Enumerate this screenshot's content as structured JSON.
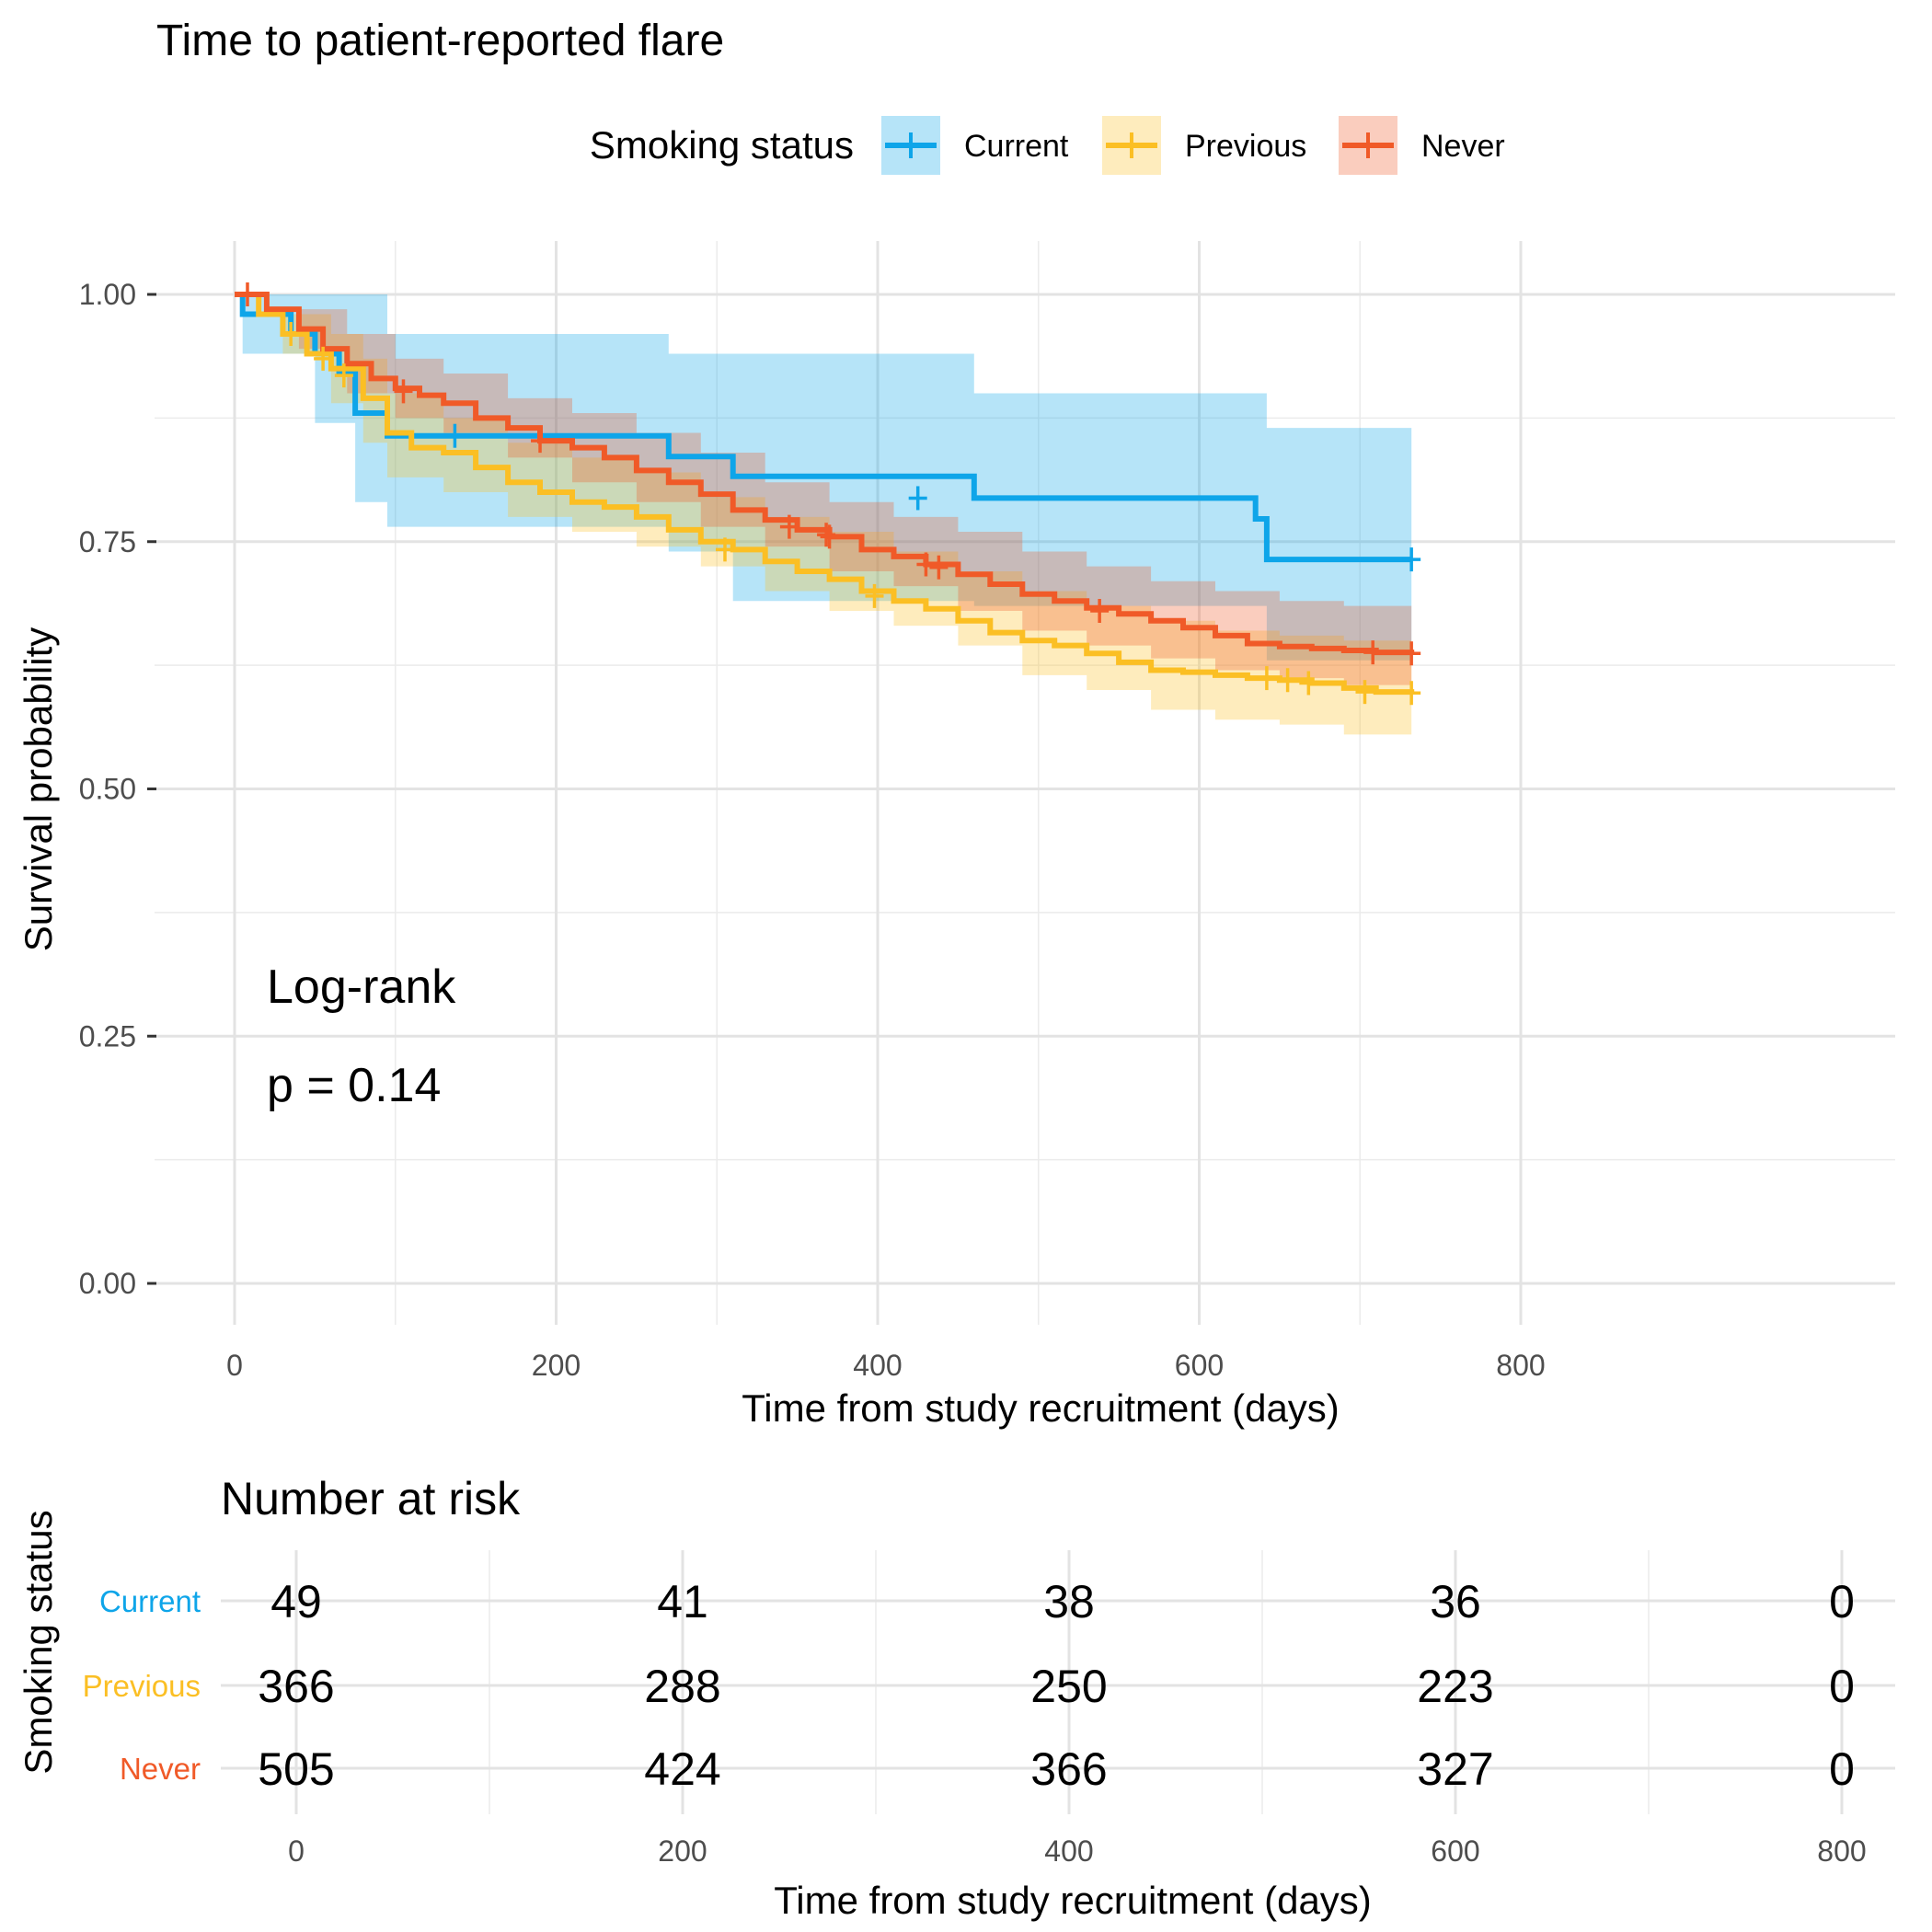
{
  "chart_data": {
    "type": "line",
    "subtype": "kaplan-meier survival curve with confidence bands and number-at-risk table",
    "title": "Time to patient-reported flare",
    "legend_title": "Smoking status",
    "legend_position": "top",
    "xlabel": "Time from study recruitment (days)",
    "ylabel": "Survival probability",
    "xlim": [
      0,
      800
    ],
    "ylim": [
      0,
      1
    ],
    "x_ticks": [
      "0",
      "200",
      "400",
      "600",
      "800"
    ],
    "y_ticks": [
      "0.00",
      "0.25",
      "0.50",
      "0.75",
      "1.00"
    ],
    "grid": true,
    "annotation": {
      "line1": "Log-rank",
      "line2": "p = 0.14"
    },
    "colors": {
      "Current": "#0ea5e9",
      "Previous": "#fbbf24",
      "Never": "#f05a28"
    },
    "series": [
      {
        "name": "Current",
        "color": "#0ea5e9",
        "steps": [
          [
            0,
            1.0
          ],
          [
            5,
            0.98
          ],
          [
            20,
            0.98
          ],
          [
            35,
            0.96
          ],
          [
            50,
            0.94
          ],
          [
            65,
            0.92
          ],
          [
            75,
            0.88
          ],
          [
            95,
            0.857
          ],
          [
            262,
            0.857
          ],
          [
            270,
            0.836
          ],
          [
            310,
            0.816
          ],
          [
            460,
            0.794
          ],
          [
            635,
            0.773
          ],
          [
            642,
            0.732
          ],
          [
            732,
            0.732
          ]
        ],
        "ci_upper": [
          [
            0,
            1.0
          ],
          [
            75,
            1.0
          ],
          [
            95,
            0.96
          ],
          [
            262,
            0.96
          ],
          [
            270,
            0.94
          ],
          [
            310,
            0.94
          ],
          [
            460,
            0.9
          ],
          [
            635,
            0.9
          ],
          [
            642,
            0.865
          ],
          [
            732,
            0.865
          ]
        ],
        "ci_lower": [
          [
            0,
            1.0
          ],
          [
            5,
            0.94
          ],
          [
            50,
            0.87
          ],
          [
            75,
            0.79
          ],
          [
            95,
            0.765
          ],
          [
            262,
            0.765
          ],
          [
            270,
            0.74
          ],
          [
            310,
            0.69
          ],
          [
            460,
            0.685
          ],
          [
            635,
            0.685
          ],
          [
            642,
            0.63
          ],
          [
            732,
            0.63
          ]
        ],
        "censored": [
          [
            137,
            0.857
          ],
          [
            425,
            0.794
          ],
          [
            732,
            0.732
          ]
        ]
      },
      {
        "name": "Previous",
        "color": "#fbbf24",
        "steps": [
          [
            0,
            1.0
          ],
          [
            15,
            0.98
          ],
          [
            30,
            0.96
          ],
          [
            45,
            0.94
          ],
          [
            60,
            0.925
          ],
          [
            80,
            0.895
          ],
          [
            95,
            0.86
          ],
          [
            110,
            0.845
          ],
          [
            130,
            0.84
          ],
          [
            150,
            0.825
          ],
          [
            170,
            0.81
          ],
          [
            190,
            0.8
          ],
          [
            210,
            0.79
          ],
          [
            230,
            0.785
          ],
          [
            250,
            0.775
          ],
          [
            270,
            0.762
          ],
          [
            290,
            0.75
          ],
          [
            310,
            0.742
          ],
          [
            330,
            0.73
          ],
          [
            350,
            0.72
          ],
          [
            370,
            0.712
          ],
          [
            390,
            0.7
          ],
          [
            410,
            0.69
          ],
          [
            430,
            0.682
          ],
          [
            450,
            0.67
          ],
          [
            470,
            0.658
          ],
          [
            490,
            0.65
          ],
          [
            510,
            0.645
          ],
          [
            530,
            0.637
          ],
          [
            550,
            0.628
          ],
          [
            570,
            0.62
          ],
          [
            590,
            0.618
          ],
          [
            610,
            0.615
          ],
          [
            630,
            0.612
          ],
          [
            650,
            0.61
          ],
          [
            670,
            0.607
          ],
          [
            690,
            0.602
          ],
          [
            710,
            0.598
          ],
          [
            732,
            0.597
          ]
        ],
        "ci_upper": [
          [
            0,
            1.0
          ],
          [
            30,
            0.98
          ],
          [
            60,
            0.96
          ],
          [
            80,
            0.935
          ],
          [
            95,
            0.9
          ],
          [
            130,
            0.875
          ],
          [
            170,
            0.85
          ],
          [
            210,
            0.835
          ],
          [
            250,
            0.82
          ],
          [
            290,
            0.795
          ],
          [
            330,
            0.775
          ],
          [
            370,
            0.76
          ],
          [
            410,
            0.74
          ],
          [
            450,
            0.72
          ],
          [
            490,
            0.7
          ],
          [
            530,
            0.685
          ],
          [
            570,
            0.67
          ],
          [
            610,
            0.66
          ],
          [
            650,
            0.655
          ],
          [
            690,
            0.65
          ],
          [
            732,
            0.645
          ]
        ],
        "ci_lower": [
          [
            0,
            1.0
          ],
          [
            30,
            0.94
          ],
          [
            60,
            0.89
          ],
          [
            80,
            0.85
          ],
          [
            95,
            0.815
          ],
          [
            130,
            0.8
          ],
          [
            170,
            0.775
          ],
          [
            210,
            0.76
          ],
          [
            250,
            0.745
          ],
          [
            290,
            0.725
          ],
          [
            330,
            0.7
          ],
          [
            370,
            0.68
          ],
          [
            410,
            0.665
          ],
          [
            450,
            0.645
          ],
          [
            490,
            0.615
          ],
          [
            530,
            0.6
          ],
          [
            570,
            0.58
          ],
          [
            610,
            0.57
          ],
          [
            650,
            0.565
          ],
          [
            690,
            0.555
          ],
          [
            732,
            0.548
          ]
        ],
        "censored": [
          [
            35,
            0.96
          ],
          [
            55,
            0.935
          ],
          [
            68,
            0.918
          ],
          [
            305,
            0.742
          ],
          [
            398,
            0.695
          ],
          [
            642,
            0.612
          ],
          [
            655,
            0.61
          ],
          [
            668,
            0.607
          ],
          [
            703,
            0.598
          ],
          [
            732,
            0.597
          ]
        ]
      },
      {
        "name": "Never",
        "color": "#f05a28",
        "steps": [
          [
            0,
            1.0
          ],
          [
            20,
            0.985
          ],
          [
            40,
            0.965
          ],
          [
            55,
            0.945
          ],
          [
            70,
            0.93
          ],
          [
            85,
            0.915
          ],
          [
            100,
            0.905
          ],
          [
            115,
            0.898
          ],
          [
            130,
            0.89
          ],
          [
            150,
            0.875
          ],
          [
            170,
            0.865
          ],
          [
            190,
            0.852
          ],
          [
            210,
            0.845
          ],
          [
            230,
            0.835
          ],
          [
            250,
            0.822
          ],
          [
            270,
            0.81
          ],
          [
            290,
            0.798
          ],
          [
            310,
            0.782
          ],
          [
            330,
            0.772
          ],
          [
            350,
            0.762
          ],
          [
            370,
            0.755
          ],
          [
            390,
            0.742
          ],
          [
            410,
            0.735
          ],
          [
            430,
            0.727
          ],
          [
            450,
            0.717
          ],
          [
            470,
            0.707
          ],
          [
            490,
            0.697
          ],
          [
            510,
            0.69
          ],
          [
            530,
            0.683
          ],
          [
            550,
            0.677
          ],
          [
            570,
            0.67
          ],
          [
            590,
            0.663
          ],
          [
            610,
            0.655
          ],
          [
            630,
            0.647
          ],
          [
            650,
            0.644
          ],
          [
            670,
            0.642
          ],
          [
            690,
            0.64
          ],
          [
            710,
            0.638
          ],
          [
            732,
            0.637
          ]
        ],
        "ci_upper": [
          [
            0,
            1.0
          ],
          [
            40,
            0.985
          ],
          [
            70,
            0.96
          ],
          [
            100,
            0.935
          ],
          [
            130,
            0.92
          ],
          [
            170,
            0.895
          ],
          [
            210,
            0.88
          ],
          [
            250,
            0.86
          ],
          [
            290,
            0.84
          ],
          [
            330,
            0.81
          ],
          [
            370,
            0.79
          ],
          [
            410,
            0.775
          ],
          [
            450,
            0.76
          ],
          [
            490,
            0.74
          ],
          [
            530,
            0.725
          ],
          [
            570,
            0.71
          ],
          [
            610,
            0.7
          ],
          [
            650,
            0.69
          ],
          [
            690,
            0.685
          ],
          [
            732,
            0.682
          ]
        ],
        "ci_lower": [
          [
            0,
            1.0
          ],
          [
            40,
            0.945
          ],
          [
            70,
            0.9
          ],
          [
            100,
            0.875
          ],
          [
            130,
            0.86
          ],
          [
            170,
            0.835
          ],
          [
            210,
            0.81
          ],
          [
            250,
            0.79
          ],
          [
            290,
            0.765
          ],
          [
            330,
            0.745
          ],
          [
            370,
            0.72
          ],
          [
            410,
            0.705
          ],
          [
            450,
            0.68
          ],
          [
            490,
            0.66
          ],
          [
            530,
            0.645
          ],
          [
            570,
            0.632
          ],
          [
            610,
            0.62
          ],
          [
            650,
            0.612
          ],
          [
            690,
            0.605
          ],
          [
            732,
            0.6
          ]
        ],
        "censored": [
          [
            8,
            1.0
          ],
          [
            105,
            0.902
          ],
          [
            190,
            0.852
          ],
          [
            345,
            0.765
          ],
          [
            368,
            0.757
          ],
          [
            370,
            0.755
          ],
          [
            430,
            0.727
          ],
          [
            438,
            0.724
          ],
          [
            538,
            0.68
          ],
          [
            708,
            0.638
          ],
          [
            732,
            0.637
          ]
        ]
      }
    ],
    "risk_table": {
      "title": "Number at risk",
      "ylabel": "Smoking status",
      "xlabel": "Time from study recruitment (days)",
      "times": [
        0,
        200,
        400,
        600,
        800
      ],
      "time_labels": [
        "0",
        "200",
        "400",
        "600",
        "800"
      ],
      "rows": [
        {
          "name": "Current",
          "counts": [
            "49",
            "41",
            "38",
            "36",
            "0"
          ]
        },
        {
          "name": "Previous",
          "counts": [
            "366",
            "288",
            "250",
            "223",
            "0"
          ]
        },
        {
          "name": "Never",
          "counts": [
            "505",
            "424",
            "366",
            "327",
            "0"
          ]
        }
      ]
    }
  }
}
